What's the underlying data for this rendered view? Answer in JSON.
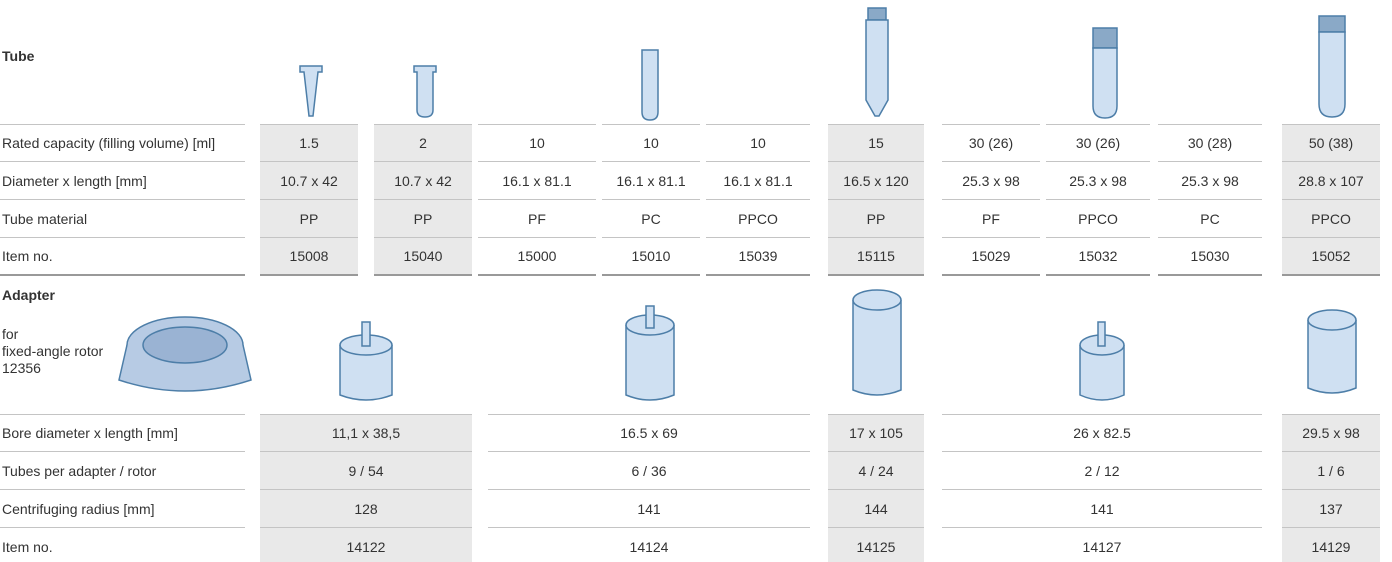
{
  "tube": {
    "heading": "Tube",
    "rows": [
      {
        "label": "Rated capacity (filling volume) [ml]",
        "cells": [
          "1.5",
          "2",
          "10",
          "10",
          "10",
          "15",
          "30 (26)",
          "30 (26)",
          "30 (28)",
          "50 (38)"
        ]
      },
      {
        "label": "Diameter x length [mm]",
        "cells": [
          "10.7 x 42",
          "10.7 x 42",
          "16.1 x 81.1",
          "16.1 x 81.1",
          "16.1 x 81.1",
          "16.5 x 120",
          "25.3 x 98",
          "25.3 x 98",
          "25.3 x 98",
          "28.8 x 107"
        ]
      },
      {
        "label": "Tube material",
        "cells": [
          "PP",
          "PP",
          "PF",
          "PC",
          "PPCO",
          "PP",
          "PF",
          "PPCO",
          "PC",
          "PPCO"
        ]
      },
      {
        "label": "Item no.",
        "cells": [
          "15008",
          "15040",
          "15000",
          "15010",
          "15039",
          "15115",
          "15029",
          "15032",
          "15030",
          "15052"
        ]
      }
    ]
  },
  "adapter": {
    "heading": "Adapter",
    "caption": [
      "for",
      "fixed-angle rotor",
      "12356"
    ],
    "rows": [
      {
        "label": "Bore diameter x length [mm]",
        "cells": [
          "11,1 x 38,5",
          "16.5 x 69",
          "17 x 105",
          "26 x 82.5",
          "29.5 x 98"
        ]
      },
      {
        "label": "Tubes per adapter / rotor",
        "cells": [
          "9 / 54",
          "6 / 36",
          "4 / 24",
          "2 / 12",
          "1 / 6"
        ]
      },
      {
        "label": "Centrifuging radius [mm]",
        "cells": [
          "128",
          "141",
          "144",
          "141",
          "137"
        ]
      },
      {
        "label": "Item no.",
        "cells": [
          "14122",
          "14124",
          "14125",
          "14127",
          "14129"
        ]
      }
    ]
  }
}
